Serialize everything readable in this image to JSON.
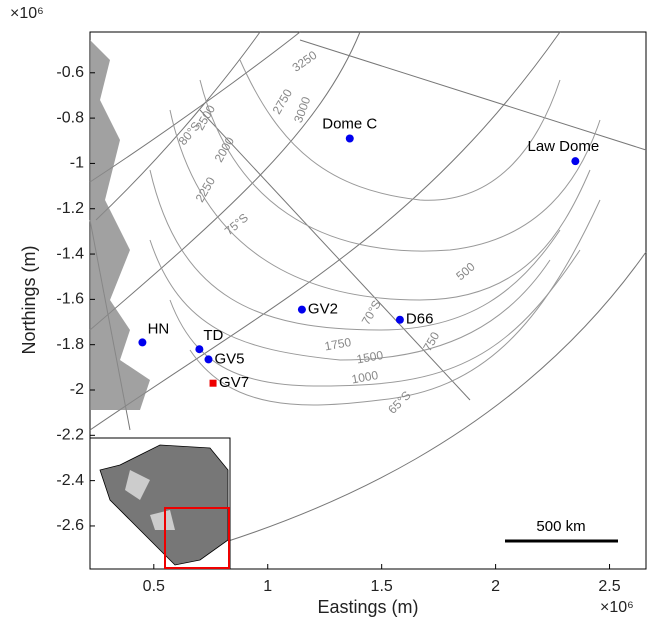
{
  "chart_data": {
    "type": "scatter",
    "x_label": "Eastings (m)",
    "y_label": "Northings (m)",
    "x_exponent": "×10⁶",
    "y_exponent": "×10⁶",
    "xlim": [
      0.22,
      2.66
    ],
    "ylim": [
      -2.79,
      -0.42
    ],
    "xticks": [
      0.5,
      1,
      1.5,
      2,
      2.5
    ],
    "yticks": [
      -2.6,
      -2.4,
      -2.2,
      -2,
      -1.8,
      -1.6,
      -1.4,
      -1.2,
      -1,
      -0.8,
      -0.6
    ],
    "points": [
      {
        "label": "Dome C",
        "x": 1.36,
        "y": -0.89,
        "color": "#0000ee",
        "marker": "circle"
      },
      {
        "label": "Law Dome",
        "x": 2.35,
        "y": -0.99,
        "color": "#0000ee",
        "marker": "circle"
      },
      {
        "label": "GV2",
        "x": 1.15,
        "y": -1.645,
        "color": "#0000ee",
        "marker": "circle"
      },
      {
        "label": "D66",
        "x": 1.58,
        "y": -1.69,
        "color": "#0000ee",
        "marker": "circle"
      },
      {
        "label": "HN",
        "x": 0.45,
        "y": -1.79,
        "color": "#0000ee",
        "marker": "circle"
      },
      {
        "label": "TD",
        "x": 0.7,
        "y": -1.82,
        "color": "#0000ee",
        "marker": "circle"
      },
      {
        "label": "GV5",
        "x": 0.74,
        "y": -1.865,
        "color": "#0000ee",
        "marker": "circle"
      },
      {
        "label": "GV7",
        "x": 0.76,
        "y": -1.97,
        "color": "#ee0000",
        "marker": "square"
      }
    ],
    "scale_bar": "500 km",
    "annotations": [
      "3250",
      "3000",
      "2750",
      "2500",
      "2250",
      "2000",
      "1750",
      "1500",
      "1000",
      "750",
      "500",
      "80°S",
      "75°S",
      "70°S",
      "65°S"
    ]
  }
}
